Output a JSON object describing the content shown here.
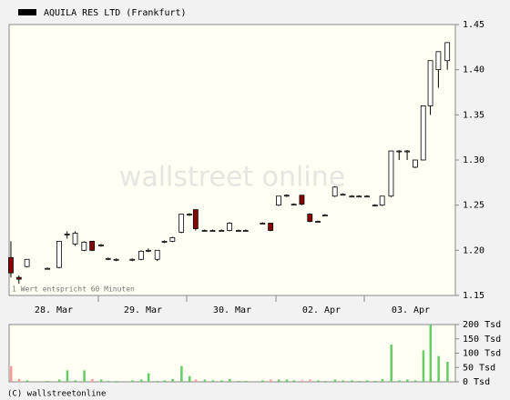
{
  "chart_data": [
    {
      "type": "candlestick",
      "title": "AQUILA RES LTD (Frankfurt)",
      "watermark": "wallstreet online",
      "note": "1 Wert entspricht 60 Minuten",
      "x": [
        0.2,
        1.1,
        2.0,
        4.3,
        5.6,
        6.5,
        7.4,
        8.4,
        9.3,
        10.3,
        11.1,
        12.0,
        13.8,
        14.8,
        15.6,
        16.6,
        17.4,
        18.3,
        19.3,
        20.2,
        20.9,
        21.9,
        22.8,
        23.8,
        24.7,
        25.7,
        26.5,
        28.4,
        29.3,
        30.2,
        31.1,
        31.9,
        32.8,
        33.7,
        34.6,
        35.4,
        36.5,
        37.4,
        38.4,
        39.2,
        40.1,
        41.0,
        41.8,
        42.8,
        43.7,
        44.6,
        45.5,
        46.4,
        47.2,
        48.1,
        49.1
      ],
      "open": [
        1.192,
        1.17,
        1.182,
        1.18,
        1.181,
        1.217,
        1.207,
        1.2,
        1.21,
        1.205,
        1.19,
        1.19,
        1.19,
        1.19,
        1.2,
        1.19,
        1.21,
        1.21,
        1.22,
        1.24,
        1.245,
        1.222,
        1.222,
        1.222,
        1.222,
        1.222,
        1.222,
        1.23,
        1.23,
        1.25,
        1.261,
        1.251,
        1.261,
        1.24,
        1.232,
        1.239,
        1.26,
        1.262,
        1.26,
        1.26,
        1.26,
        1.25,
        1.25,
        1.26,
        1.31,
        1.31,
        1.292,
        1.3,
        1.36,
        1.4,
        1.41
      ],
      "high": [
        1.21,
        1.172,
        1.19,
        1.181,
        1.21,
        1.221,
        1.221,
        1.21,
        1.21,
        1.207,
        1.192,
        1.191,
        1.191,
        1.2,
        1.202,
        1.2,
        1.211,
        1.215,
        1.24,
        1.241,
        1.245,
        1.223,
        1.223,
        1.223,
        1.231,
        1.223,
        1.223,
        1.231,
        1.23,
        1.26,
        1.262,
        1.252,
        1.261,
        1.241,
        1.233,
        1.24,
        1.271,
        1.263,
        1.261,
        1.261,
        1.261,
        1.251,
        1.26,
        1.31,
        1.311,
        1.311,
        1.3,
        1.36,
        1.41,
        1.42,
        1.43
      ],
      "low": [
        1.17,
        1.163,
        1.181,
        1.179,
        1.18,
        1.213,
        1.205,
        1.199,
        1.199,
        1.204,
        1.189,
        1.188,
        1.188,
        1.189,
        1.198,
        1.188,
        1.208,
        1.209,
        1.219,
        1.238,
        1.222,
        1.221,
        1.221,
        1.221,
        1.221,
        1.221,
        1.221,
        1.229,
        1.221,
        1.249,
        1.259,
        1.25,
        1.25,
        1.231,
        1.231,
        1.238,
        1.259,
        1.261,
        1.259,
        1.259,
        1.259,
        1.249,
        1.249,
        1.259,
        1.3,
        1.3,
        1.291,
        1.3,
        1.35,
        1.38,
        1.4
      ],
      "close": [
        1.175,
        1.168,
        1.19,
        1.18,
        1.21,
        1.218,
        1.219,
        1.209,
        1.2,
        1.206,
        1.191,
        1.19,
        1.19,
        1.199,
        1.2,
        1.2,
        1.21,
        1.214,
        1.24,
        1.24,
        1.224,
        1.222,
        1.222,
        1.222,
        1.23,
        1.222,
        1.222,
        1.23,
        1.222,
        1.26,
        1.261,
        1.251,
        1.251,
        1.232,
        1.232,
        1.239,
        1.27,
        1.262,
        1.26,
        1.26,
        1.26,
        1.25,
        1.26,
        1.31,
        1.31,
        1.31,
        1.3,
        1.36,
        1.41,
        1.42,
        1.43
      ],
      "up_color": "#ffffff",
      "down_color": "#8b0000",
      "xlim": [
        0,
        50
      ],
      "xticks": [
        {
          "value": 5,
          "label": "28. Mar"
        },
        {
          "value": 15,
          "label": "29. Mar"
        },
        {
          "value": 25,
          "label": "30. Mar"
        },
        {
          "value": 35,
          "label": "02. Apr"
        },
        {
          "value": 45,
          "label": "03. Apr"
        }
      ],
      "ylim": [
        1.15,
        1.45
      ],
      "yticks": [
        {
          "value": 1.15,
          "label": "1.15"
        },
        {
          "value": 1.2,
          "label": "1.20"
        },
        {
          "value": 1.25,
          "label": "1.25"
        },
        {
          "value": 1.3,
          "label": "1.30"
        },
        {
          "value": 1.35,
          "label": "1.35"
        },
        {
          "value": 1.4,
          "label": "1.40"
        },
        {
          "value": 1.45,
          "label": "1.45"
        }
      ]
    },
    {
      "type": "volume",
      "footer": "(C) wallstreetonline",
      "values": [
        55,
        10,
        5,
        3,
        8,
        40,
        5,
        40,
        10,
        8,
        3,
        3,
        5,
        8,
        30,
        3,
        5,
        10,
        55,
        20,
        8,
        8,
        5,
        5,
        10,
        3,
        3,
        5,
        8,
        8,
        8,
        5,
        5,
        8,
        5,
        3,
        8,
        5,
        5,
        3,
        5,
        3,
        10,
        130,
        5,
        8,
        5,
        110,
        200,
        90,
        70
      ],
      "up_color": "#66cc66",
      "down_color": "#ff9999",
      "ylim": [
        0,
        200
      ],
      "yticks": [
        {
          "value": 0,
          "label": "0 Tsd"
        },
        {
          "value": 50,
          "label": "50 Tsd"
        },
        {
          "value": 100,
          "label": "100 Tsd"
        },
        {
          "value": 150,
          "label": "150 Tsd"
        },
        {
          "value": 200,
          "label": "200 Tsd"
        }
      ]
    }
  ]
}
